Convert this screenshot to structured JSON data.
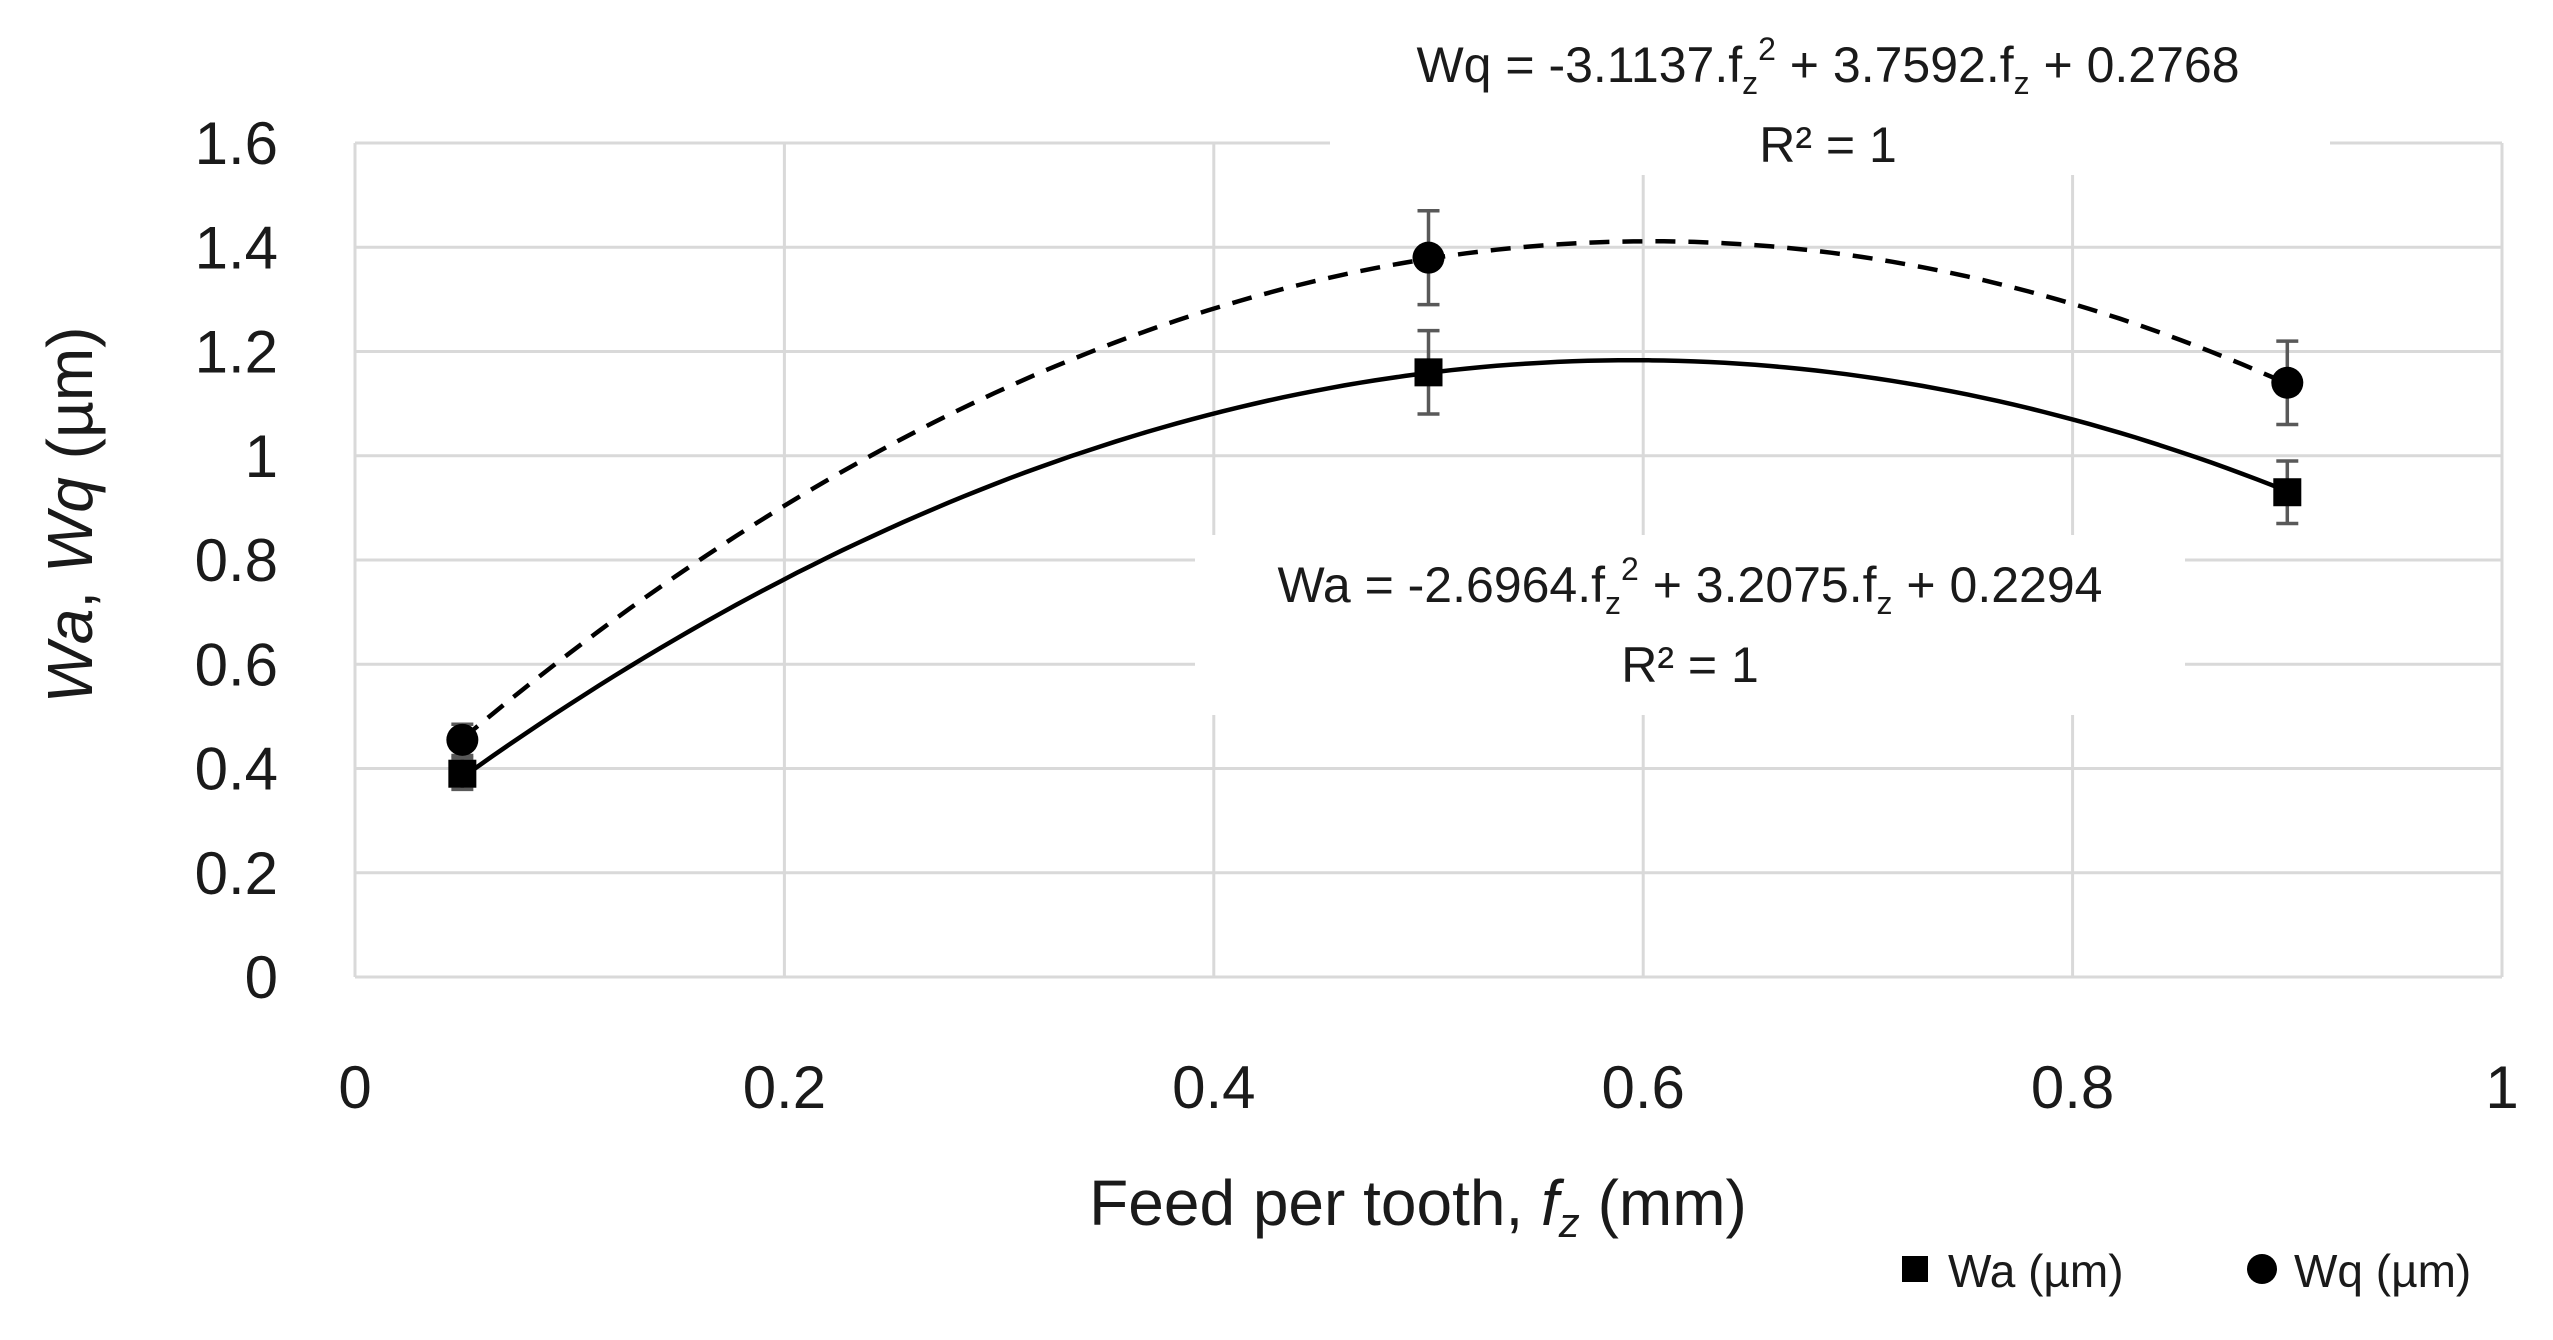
{
  "chart_data": {
    "type": "scatter",
    "title": "",
    "xlabel": {
      "prefix": "Feed per tooth, ",
      "var": "f",
      "sub": "z",
      "suffix": " (mm)"
    },
    "ylabel": {
      "a": "Wa",
      "sep": ", ",
      "b": "Wq",
      "suffix": " (µm)"
    },
    "xlim": [
      0,
      1
    ],
    "ylim": [
      0,
      1.6
    ],
    "xticks": [
      0,
      0.2,
      0.4,
      0.6,
      0.8,
      1
    ],
    "xtick_labels": [
      "0",
      "0.2",
      "0.4",
      "0.6",
      "0.8",
      "1"
    ],
    "yticks": [
      0,
      0.2,
      0.4,
      0.6,
      0.8,
      1,
      1.2,
      1.4,
      1.6
    ],
    "ytick_labels": [
      "0",
      "0.2",
      "0.4",
      "0.6",
      "0.8",
      "1",
      "1.2",
      "1.4",
      "1.6"
    ],
    "grid": true,
    "legend_position": "bottom-right",
    "series": [
      {
        "name": "Wa (µm)",
        "marker": "square",
        "x": [
          0.05,
          0.5,
          0.9
        ],
        "y": [
          0.39,
          1.16,
          0.93
        ],
        "err": [
          0.03,
          0.08,
          0.06
        ],
        "trendline": {
          "style": "solid",
          "coeffs": [
            -2.6964,
            3.2075,
            0.2294
          ]
        },
        "equation": {
          "lhs": "Wa = -2.6964.f",
          "sub1": "z",
          "sup": "2",
          "mid": " + 3.2075.f",
          "sub2": "z",
          "rhs": " + 0.2294",
          "r2": "R² = 1"
        }
      },
      {
        "name": "Wq (µm)",
        "marker": "circle",
        "x": [
          0.05,
          0.5,
          0.9
        ],
        "y": [
          0.455,
          1.38,
          1.14
        ],
        "err": [
          0.03,
          0.09,
          0.08
        ],
        "trendline": {
          "style": "dashed",
          "coeffs": [
            -3.1137,
            3.7592,
            0.2768
          ]
        },
        "equation": {
          "lhs": "Wq = -3.1137.f",
          "sub1": "z",
          "sup": "2",
          "mid": " + 3.7592.f",
          "sub2": "z",
          "rhs": " + 0.2768",
          "r2": "R² = 1"
        }
      }
    ],
    "colors": {
      "marker": "#000000",
      "grid": "#d9d9d9",
      "errorbar": "#595959",
      "text": "#1a1a1a"
    }
  }
}
